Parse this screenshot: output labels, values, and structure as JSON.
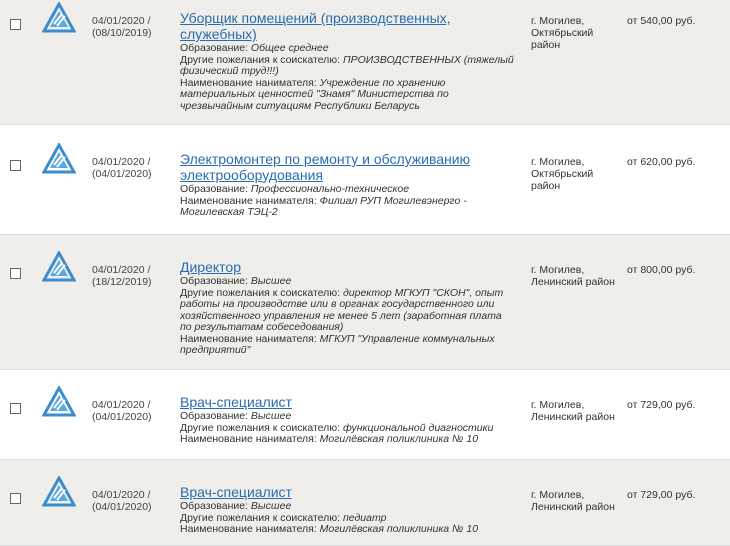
{
  "rows": [
    {
      "date": "04/01/2020 /",
      "date2": "(08/10/2019)",
      "title": "Уборщик помещений (производственных, служебных)",
      "details": [
        {
          "label": "Образование:",
          "value": "Общее среднее"
        },
        {
          "label": "Другие пожелания к соискателю:",
          "value": "ПРОИЗВОДСТВЕННЫХ (тяжелый физический труд!!!)"
        },
        {
          "label": "Наименование нанимателя:",
          "value": "Учреждение по хранению материальных ценностей \"Знамя\" Министерства по чрезвычайным ситуациям Республики Беларусь"
        }
      ],
      "city": "г. Могилев, Октябрьский район",
      "salary": "от 540,00 руб."
    },
    {
      "date": "04/01/2020 /",
      "date2": "(04/01/2020)",
      "title": "Электромонтер по ремонту и обслуживанию электрооборудования",
      "details": [
        {
          "label": "Образование:",
          "value": "Профессионально-техническое"
        },
        {
          "label": "Наименование нанимателя:",
          "value": "Филиал РУП Могилевэнерго - Могилевская ТЭЦ-2"
        }
      ],
      "city": "г. Могилев, Октябрьский район",
      "salary": "от 620,00 руб."
    },
    {
      "date": "04/01/2020 /",
      "date2": "(18/12/2019)",
      "title": "Директор",
      "details": [
        {
          "label": "Образование:",
          "value": "Высшее"
        },
        {
          "label": "Другие пожелания к соискателю:",
          "value": "директор МГКУП \"СКОН\", опыт работы на производстве или в органах государственного или хозяйственного управления не менее 5 лет (заработная плата по результатам собеседования)"
        },
        {
          "label": "Наименование нанимателя:",
          "value": "МГКУП \"Управление коммунальных предприятий\""
        }
      ],
      "city": "г. Могилев, Ленинский район",
      "salary": "от 800,00 руб."
    },
    {
      "date": "04/01/2020 /",
      "date2": "(04/01/2020)",
      "title": "Врач-специалист",
      "details": [
        {
          "label": "Образование:",
          "value": "Высшее"
        },
        {
          "label": "Другие пожелания к соискателю:",
          "value": "функциональной диагностики"
        },
        {
          "label": "Наименование нанимателя:",
          "value": "Могилёвская поликлиника № 10"
        }
      ],
      "city": "г. Могилев, Ленинский район",
      "salary": "от 729,00 руб."
    },
    {
      "date": "04/01/2020 /",
      "date2": "(04/01/2020)",
      "title": "Врач-специалист",
      "details": [
        {
          "label": "Образование:",
          "value": "Высшее"
        },
        {
          "label": "Другие пожелания к соискателю:",
          "value": "педиатр"
        },
        {
          "label": "Наименование нанимателя:",
          "value": "Могилёвская поликлиника № 10"
        }
      ],
      "city": "г. Могилев, Ленинский район",
      "salary": "от 729,00 руб."
    }
  ]
}
